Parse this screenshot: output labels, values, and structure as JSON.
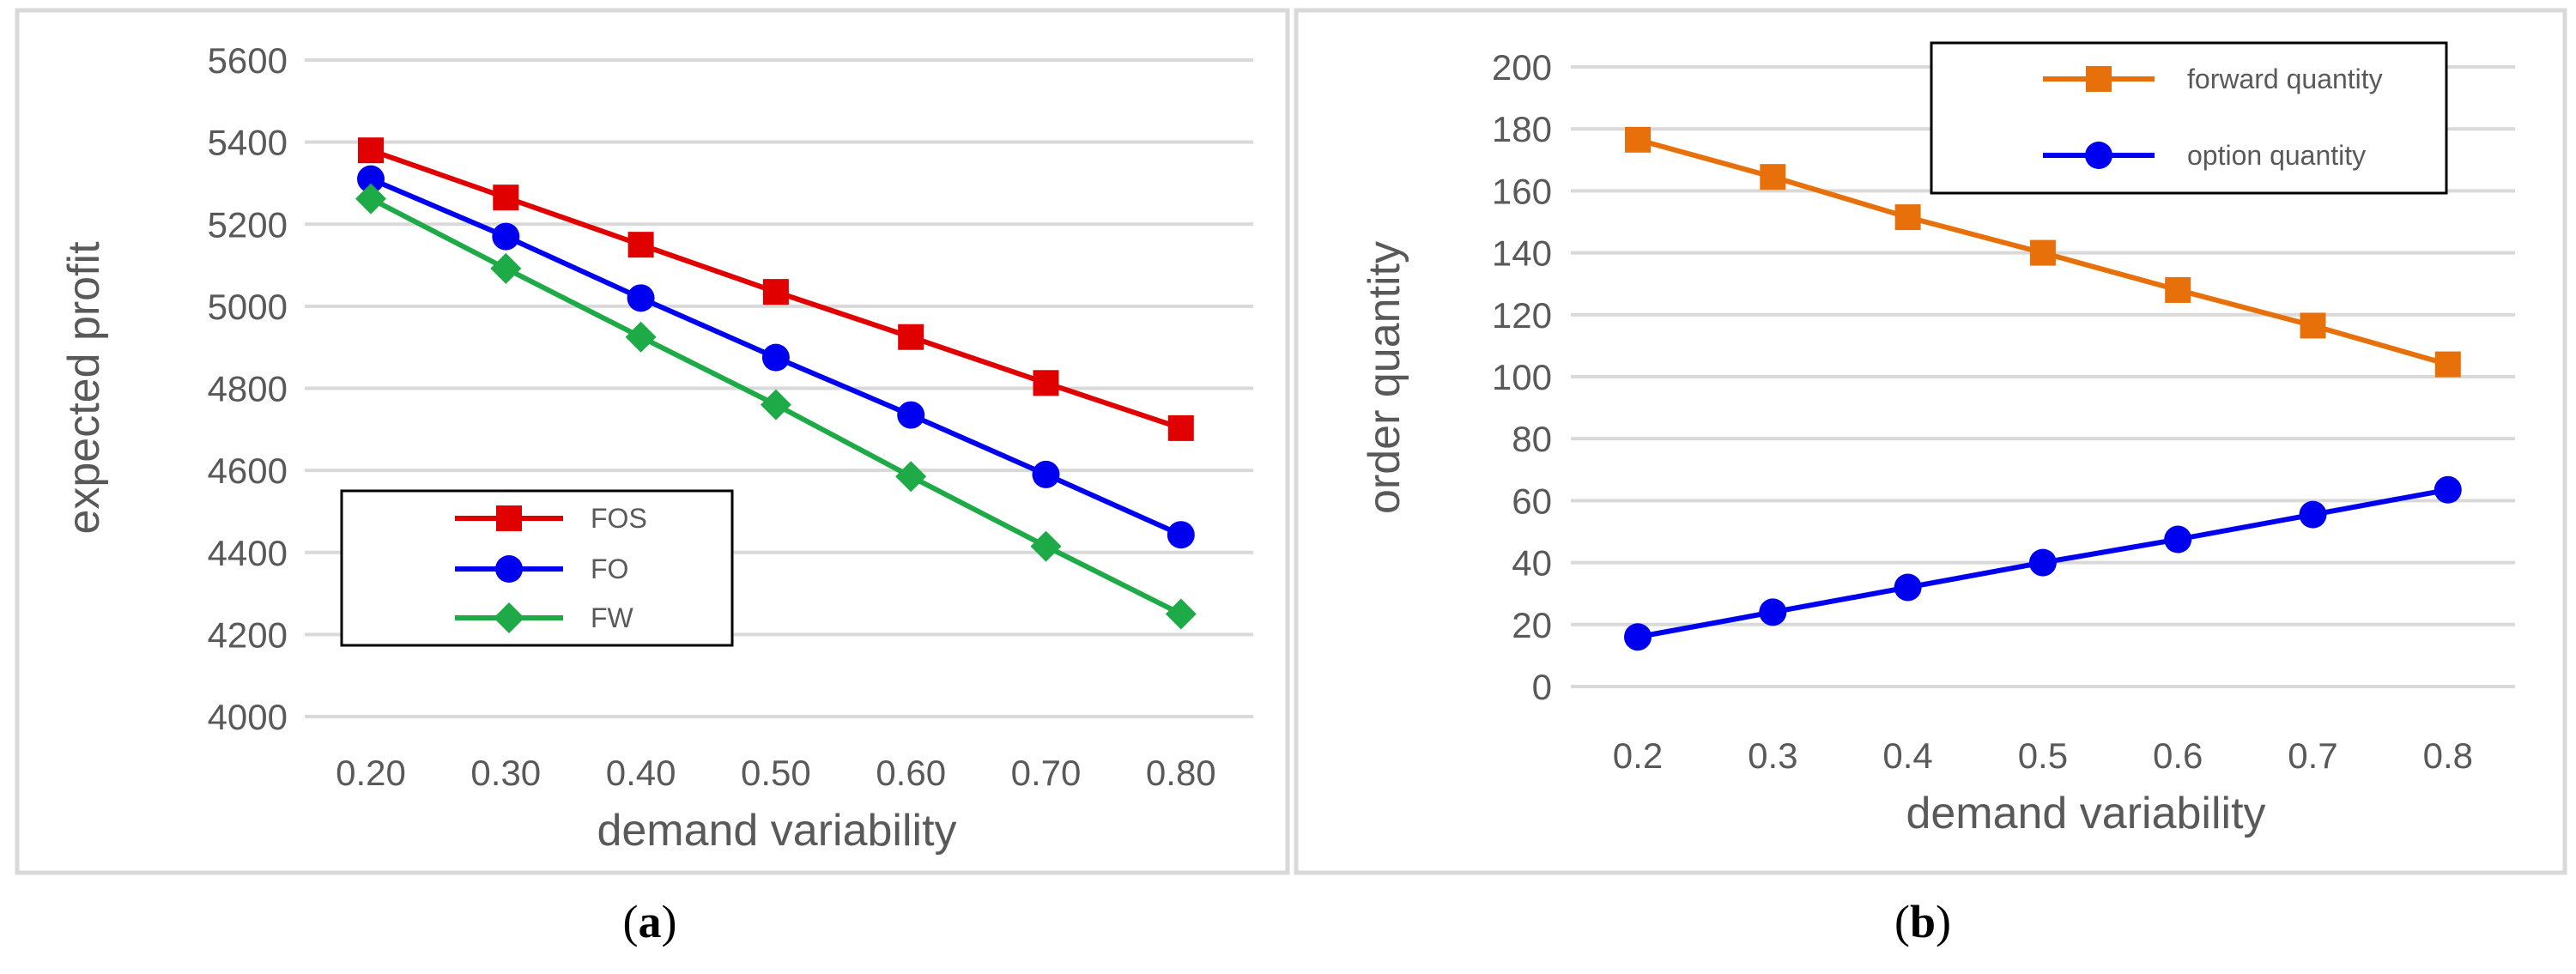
{
  "chart_data": [
    {
      "id": "a",
      "type": "line",
      "caption": {
        "open": "(",
        "letter": "a",
        "close": ")"
      },
      "xlabel": "demand variability",
      "ylabel": "expected profit",
      "categories": [
        "0.20",
        "0.30",
        "0.40",
        "0.50",
        "0.60",
        "0.70",
        "0.80"
      ],
      "ylim": [
        4000,
        5600
      ],
      "yticks": [
        "4000",
        "4200",
        "4400",
        "4600",
        "4800",
        "5000",
        "5200",
        "5400",
        "5600"
      ],
      "grid": true,
      "legend_position": "lower-left",
      "series": [
        {
          "name": "FOS",
          "color": "#E00000",
          "marker": "square",
          "values": [
            5380,
            5265,
            5150,
            5035,
            4925,
            4813,
            4703
          ]
        },
        {
          "name": "FO",
          "color": "#0000F0",
          "marker": "circle",
          "values": [
            5310,
            5170,
            5020,
            4875,
            4735,
            4590,
            4443
          ]
        },
        {
          "name": "FW",
          "color": "#1FAA48",
          "marker": "diamond",
          "values": [
            5262,
            5092,
            4925,
            4760,
            4585,
            4415,
            4250
          ]
        }
      ]
    },
    {
      "id": "b",
      "type": "line",
      "caption": {
        "open": "(",
        "letter": "b",
        "close": ")"
      },
      "xlabel": "demand variability",
      "ylabel": "order quantity",
      "categories": [
        "0.2",
        "0.3",
        "0.4",
        "0.5",
        "0.6",
        "0.7",
        "0.8"
      ],
      "ylim": [
        0,
        200
      ],
      "yticks": [
        "0",
        "20",
        "40",
        "60",
        "80",
        "100",
        "120",
        "140",
        "160",
        "180",
        "200"
      ],
      "grid": true,
      "legend_position": "top-right",
      "series": [
        {
          "name": "forward quantity",
          "color": "#E8700A",
          "marker": "square",
          "values": [
            176.5,
            164.5,
            151.5,
            140,
            128,
            116.5,
            104
          ]
        },
        {
          "name": "option quantity",
          "color": "#0000F0",
          "marker": "circle",
          "values": [
            16,
            24,
            32,
            40,
            47.5,
            55.5,
            63.5
          ]
        }
      ]
    }
  ]
}
